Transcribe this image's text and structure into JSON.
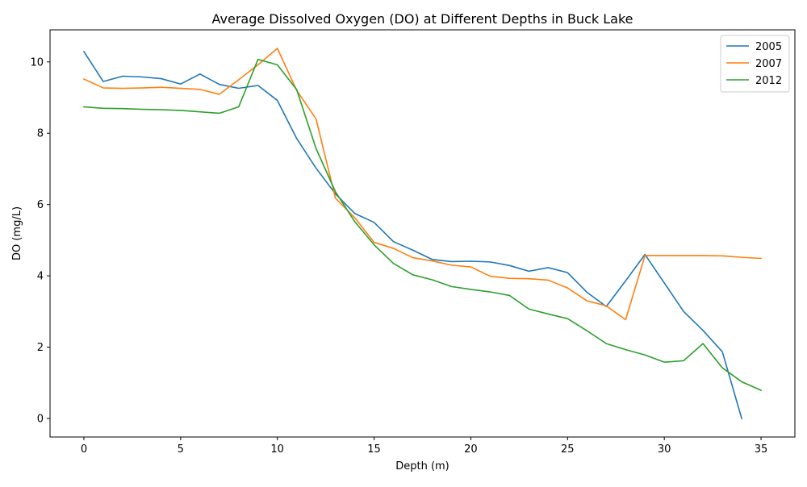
{
  "chart_data": {
    "type": "line",
    "title": "Average Dissolved Oxygen (DO) at Different Depths in Buck Lake",
    "xlabel": "Depth (m)",
    "ylabel": "DO (mg/L)",
    "xlim": [
      -1.75,
      36.75
    ],
    "ylim": [
      -0.52,
      10.9
    ],
    "xticks": [
      0,
      5,
      10,
      15,
      20,
      25,
      30,
      35
    ],
    "yticks": [
      0,
      2,
      4,
      6,
      8,
      10
    ],
    "grid": false,
    "legend_position": "top-right",
    "series": [
      {
        "name": "2005",
        "color": "#1f77b4",
        "x": [
          0,
          1,
          2,
          3,
          4,
          5,
          6,
          7,
          8,
          9,
          10,
          11,
          12,
          13,
          14,
          15,
          16,
          17,
          18,
          19,
          20,
          21,
          22,
          23,
          24,
          25,
          26,
          27,
          28,
          29,
          30,
          31,
          32,
          33,
          34
        ],
        "values": [
          10.29,
          9.45,
          9.6,
          9.58,
          9.53,
          9.38,
          9.66,
          9.37,
          9.26,
          9.34,
          8.92,
          7.85,
          7.02,
          6.3,
          5.75,
          5.5,
          4.96,
          4.72,
          4.46,
          4.4,
          4.41,
          4.39,
          4.29,
          4.13,
          4.23,
          4.09,
          3.54,
          3.14,
          3.86,
          4.6,
          3.8,
          3.0,
          2.47,
          1.87,
          0.0
        ]
      },
      {
        "name": "2007",
        "color": "#ff7f0e",
        "x": [
          0,
          1,
          2,
          3,
          4,
          5,
          6,
          7,
          8,
          9,
          10,
          11,
          12,
          13,
          14,
          15,
          16,
          17,
          18,
          19,
          20,
          21,
          22,
          23,
          24,
          25,
          26,
          27,
          28,
          29,
          30,
          31,
          32,
          33,
          34,
          35
        ],
        "values": [
          9.52,
          9.27,
          9.26,
          9.27,
          9.29,
          9.26,
          9.23,
          9.09,
          9.5,
          9.92,
          10.38,
          9.2,
          8.4,
          6.18,
          5.63,
          4.94,
          4.77,
          4.51,
          4.42,
          4.3,
          4.25,
          3.99,
          3.93,
          3.92,
          3.88,
          3.66,
          3.3,
          3.16,
          2.77,
          4.57,
          4.57,
          4.57,
          4.57,
          4.56,
          4.52,
          4.49
        ]
      },
      {
        "name": "2012",
        "color": "#2ca02c",
        "x": [
          0,
          1,
          2,
          3,
          4,
          5,
          6,
          7,
          8,
          9,
          10,
          11,
          12,
          13,
          14,
          15,
          16,
          17,
          18,
          19,
          20,
          21,
          22,
          23,
          24,
          25,
          26,
          27,
          28,
          29,
          30,
          31,
          32,
          33,
          34,
          35
        ],
        "values": [
          8.74,
          8.7,
          8.69,
          8.67,
          8.66,
          8.64,
          8.6,
          8.56,
          8.74,
          10.07,
          9.92,
          9.22,
          7.57,
          6.36,
          5.52,
          4.87,
          4.35,
          4.03,
          3.89,
          3.7,
          3.62,
          3.55,
          3.45,
          3.07,
          2.93,
          2.8,
          2.46,
          2.1,
          1.93,
          1.78,
          1.58,
          1.62,
          2.1,
          1.42,
          1.03,
          0.79
        ]
      }
    ]
  }
}
